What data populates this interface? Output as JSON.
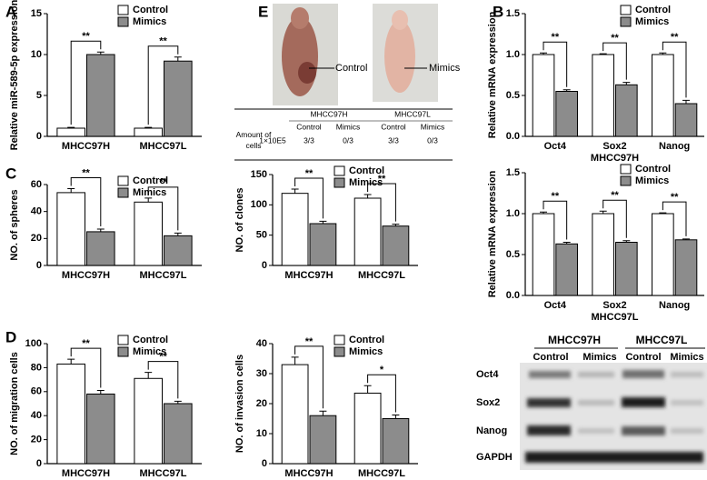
{
  "figure": {
    "panel_letters": [
      "A",
      "B",
      "C",
      "D",
      "E"
    ],
    "mouse_photos": {
      "labels": [
        "Control",
        "Mimics"
      ]
    },
    "tumor_table": {
      "groups": [
        "MHCC97H",
        "MHCC97L"
      ],
      "subheaders": [
        "Control",
        "Mimics",
        "Control",
        "Mimics"
      ],
      "row_label": "Amount of cells",
      "cells": [
        "1×10E5",
        "3/3",
        "0/3",
        "3/3",
        "0/3"
      ]
    },
    "western_blot": {
      "groups": [
        "MHCC97H",
        "MHCC97L"
      ],
      "lanes": [
        "Control",
        "Mimics",
        "Control",
        "Mimics"
      ],
      "rows": [
        "Oct4",
        "Sox2",
        "Nanog",
        "GAPDH"
      ]
    }
  },
  "chart_data": [
    {
      "type": "bar",
      "ylabel": "Relative miR-589-5p expression",
      "categories": [
        "MHCC97H",
        "MHCC97L"
      ],
      "series": [
        {
          "name": "Control",
          "color": "#ffffff",
          "values": [
            1,
            1
          ],
          "errors": [
            0.1,
            0.1
          ]
        },
        {
          "name": "Mimics",
          "color": "#8c8c8c",
          "values": [
            10,
            9.2
          ],
          "errors": [
            0.3,
            0.5
          ]
        }
      ],
      "significance": [
        "**",
        "**"
      ],
      "ylim": [
        0,
        15
      ],
      "yticks": [
        0,
        5,
        10,
        15
      ],
      "legend": "upper right"
    },
    {
      "type": "bar",
      "ylabel": "Relative mRNA expression",
      "xlabel": "MHCC97H",
      "categories": [
        "Oct4",
        "Sox2",
        "Nanog"
      ],
      "series": [
        {
          "name": "Control",
          "color": "#ffffff",
          "values": [
            1,
            1,
            1
          ],
          "errors": [
            0.02,
            0.01,
            0.02
          ]
        },
        {
          "name": "Mimics",
          "color": "#8c8c8c",
          "values": [
            0.55,
            0.63,
            0.4
          ],
          "errors": [
            0.02,
            0.03,
            0.04
          ]
        }
      ],
      "significance": [
        "**",
        "**",
        "**"
      ],
      "ylim": [
        0,
        1.5
      ],
      "yticks": [
        {
          "value": 0,
          "label": "0.0"
        },
        0.5,
        {
          "value": 1,
          "label": "1.0"
        },
        1.5
      ],
      "legend": "upper right"
    },
    {
      "type": "bar",
      "ylabel": "Relative mRNA expression",
      "xlabel": "MHCC97L",
      "categories": [
        "Oct4",
        "Sox2",
        "Nanog"
      ],
      "series": [
        {
          "name": "Control",
          "color": "#ffffff",
          "values": [
            1,
            1,
            1
          ],
          "errors": [
            0.02,
            0.03,
            0.01
          ]
        },
        {
          "name": "Mimics",
          "color": "#8c8c8c",
          "values": [
            0.63,
            0.65,
            0.68
          ],
          "errors": [
            0.02,
            0.02,
            0.01
          ]
        }
      ],
      "significance": [
        "**",
        "**",
        "**"
      ],
      "ylim": [
        0,
        1.5
      ],
      "yticks": [
        {
          "value": 0,
          "label": "0.0"
        },
        0.5,
        {
          "value": 1,
          "label": "1.0"
        },
        1.5
      ],
      "legend": "upper right"
    },
    {
      "type": "bar",
      "ylabel": "NO. of spheres",
      "categories": [
        "MHCC97H",
        "MHCC97L"
      ],
      "series": [
        {
          "name": "Control",
          "color": "#ffffff",
          "values": [
            54,
            47
          ],
          "errors": [
            3,
            3
          ]
        },
        {
          "name": "Mimics",
          "color": "#8c8c8c",
          "values": [
            25,
            22
          ],
          "errors": [
            2,
            2
          ]
        }
      ],
      "significance": [
        "**",
        "**"
      ],
      "ylim": [
        0,
        60
      ],
      "yticks": [
        0,
        20,
        40,
        60
      ],
      "legend": "upper right"
    },
    {
      "type": "bar",
      "ylabel": "NO. of clones",
      "categories": [
        "MHCC97H",
        "MHCC97L"
      ],
      "series": [
        {
          "name": "Control",
          "color": "#ffffff",
          "values": [
            119,
            111
          ],
          "errors": [
            7,
            6
          ]
        },
        {
          "name": "Mimics",
          "color": "#8c8c8c",
          "values": [
            69,
            65
          ],
          "errors": [
            4,
            3
          ]
        }
      ],
      "significance": [
        "**",
        "**"
      ],
      "ylim": [
        0,
        150
      ],
      "yticks": [
        0,
        50,
        100,
        150
      ],
      "legend": "upper right"
    },
    {
      "type": "bar",
      "ylabel": "NO. of migration cells",
      "categories": [
        "MHCC97H",
        "MHCC97L"
      ],
      "series": [
        {
          "name": "Control",
          "color": "#ffffff",
          "values": [
            83,
            71
          ],
          "errors": [
            4,
            5
          ]
        },
        {
          "name": "Mimics",
          "color": "#8c8c8c",
          "values": [
            58,
            50
          ],
          "errors": [
            3,
            2
          ]
        }
      ],
      "significance": [
        "**",
        "**"
      ],
      "ylim": [
        0,
        100
      ],
      "yticks": [
        0,
        20,
        40,
        60,
        80,
        100
      ],
      "legend": "upper right"
    },
    {
      "type": "bar",
      "ylabel": "NO. of invasion cells",
      "categories": [
        "MHCC97H",
        "MHCC97L"
      ],
      "series": [
        {
          "name": "Control",
          "color": "#ffffff",
          "values": [
            33,
            23.5
          ],
          "errors": [
            2.5,
            2.5
          ]
        },
        {
          "name": "Mimics",
          "color": "#8c8c8c",
          "values": [
            16,
            15
          ],
          "errors": [
            1.5,
            1.2
          ]
        }
      ],
      "significance": [
        "**",
        "*"
      ],
      "ylim": [
        0,
        40
      ],
      "yticks": [
        0,
        10,
        20,
        30,
        40
      ],
      "legend": "upper right"
    }
  ]
}
